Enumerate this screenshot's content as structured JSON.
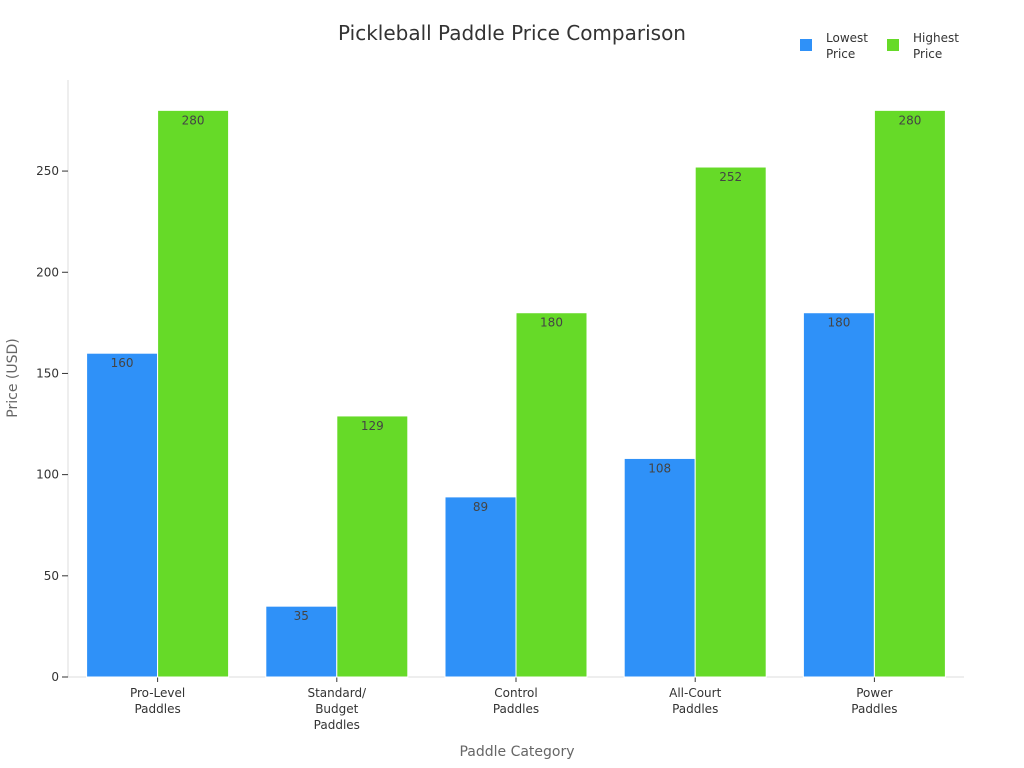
{
  "chart_data": {
    "type": "bar",
    "title": "Pickleball Paddle Price Comparison",
    "xlabel": "Paddle Category",
    "ylabel": "Price (USD)",
    "ylim": [
      0,
      295
    ],
    "yticks": [
      0,
      50,
      100,
      150,
      200,
      250
    ],
    "grid": false,
    "legend_position": "top-right",
    "categories": [
      [
        "Pro-Level",
        "Paddles"
      ],
      [
        "Standard/",
        "Budget",
        "Paddles"
      ],
      [
        "Control",
        "Paddles"
      ],
      [
        "All-Court",
        "Paddles"
      ],
      [
        "Power",
        "Paddles"
      ]
    ],
    "series": [
      {
        "name": [
          "Lowest",
          "Price"
        ],
        "color": "#2f91f8",
        "values": [
          160,
          35,
          89,
          108,
          180
        ]
      },
      {
        "name": [
          "Highest",
          "Price"
        ],
        "color": "#66da28",
        "values": [
          280,
          129,
          180,
          252,
          280
        ]
      }
    ]
  }
}
